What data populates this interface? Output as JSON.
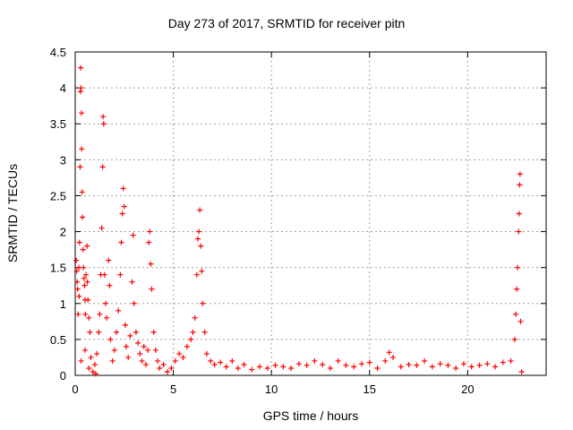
{
  "chart_data": {
    "type": "scatter",
    "title": "Day 273 of 2017, SRMTID for receiver pitn",
    "xlabel": "GPS time / hours",
    "ylabel": "SRMTID / TECUs",
    "xlim": [
      0,
      24
    ],
    "ylim": [
      0,
      4.5
    ],
    "xticks": [
      0,
      5,
      10,
      15,
      20
    ],
    "yticks": [
      0,
      0.5,
      1,
      1.5,
      2,
      2.5,
      3,
      3.5,
      4,
      4.5
    ],
    "grid": true,
    "marker": "+",
    "color": "#ff0000",
    "series": [
      {
        "name": "SRMTID",
        "points": [
          [
            0.05,
            1.6
          ],
          [
            0.08,
            1.45
          ],
          [
            0.1,
            1.3
          ],
          [
            0.12,
            1.2
          ],
          [
            0.15,
            0.85
          ],
          [
            0.18,
            1.5
          ],
          [
            0.2,
            1.1
          ],
          [
            0.22,
            1.85
          ],
          [
            0.25,
            2.9
          ],
          [
            0.27,
            3.95
          ],
          [
            0.28,
            4.28
          ],
          [
            0.3,
            4.0
          ],
          [
            0.32,
            3.65
          ],
          [
            0.33,
            3.15
          ],
          [
            0.35,
            2.55
          ],
          [
            0.37,
            2.2
          ],
          [
            0.4,
            1.75
          ],
          [
            0.42,
            1.5
          ],
          [
            0.45,
            1.35
          ],
          [
            0.48,
            1.25
          ],
          [
            0.5,
            1.05
          ],
          [
            0.52,
            0.85
          ],
          [
            0.55,
            1.4
          ],
          [
            0.6,
            1.8
          ],
          [
            0.62,
            1.3
          ],
          [
            0.65,
            1.05
          ],
          [
            0.7,
            0.8
          ],
          [
            0.75,
            0.6
          ],
          [
            0.3,
            0.2
          ],
          [
            0.5,
            0.35
          ],
          [
            0.7,
            0.1
          ],
          [
            0.8,
            0.25
          ],
          [
            0.9,
            0.05
          ],
          [
            1.0,
            0.15
          ],
          [
            1.05,
            0.02
          ],
          [
            1.1,
            0.3
          ],
          [
            1.2,
            0.6
          ],
          [
            1.25,
            0.85
          ],
          [
            1.3,
            1.4
          ],
          [
            1.35,
            2.05
          ],
          [
            1.4,
            2.9
          ],
          [
            1.42,
            3.6
          ],
          [
            1.45,
            3.5
          ],
          [
            1.5,
            1.4
          ],
          [
            1.55,
            1.0
          ],
          [
            1.6,
            0.8
          ],
          [
            1.7,
            1.6
          ],
          [
            1.75,
            1.25
          ],
          [
            1.8,
            0.5
          ],
          [
            1.9,
            0.2
          ],
          [
            2.0,
            0.35
          ],
          [
            2.1,
            0.6
          ],
          [
            2.2,
            0.9
          ],
          [
            2.3,
            1.4
          ],
          [
            2.35,
            1.85
          ],
          [
            2.4,
            2.25
          ],
          [
            2.45,
            2.6
          ],
          [
            2.5,
            2.35
          ],
          [
            2.55,
            0.7
          ],
          [
            2.6,
            0.4
          ],
          [
            2.7,
            0.25
          ],
          [
            2.8,
            0.55
          ],
          [
            2.9,
            1.3
          ],
          [
            2.95,
            1.95
          ],
          [
            3.0,
            1.0
          ],
          [
            3.1,
            0.6
          ],
          [
            3.2,
            0.45
          ],
          [
            3.3,
            0.3
          ],
          [
            3.4,
            0.2
          ],
          [
            3.5,
            0.4
          ],
          [
            3.6,
            0.15
          ],
          [
            3.7,
            0.35
          ],
          [
            3.75,
            1.85
          ],
          [
            3.8,
            2.0
          ],
          [
            3.85,
            1.55
          ],
          [
            3.9,
            1.2
          ],
          [
            4.0,
            0.6
          ],
          [
            4.1,
            0.35
          ],
          [
            4.2,
            0.2
          ],
          [
            4.3,
            0.1
          ],
          [
            4.5,
            0.15
          ],
          [
            4.7,
            0.05
          ],
          [
            4.9,
            0.1
          ],
          [
            5.1,
            0.2
          ],
          [
            5.3,
            0.3
          ],
          [
            5.5,
            0.25
          ],
          [
            5.7,
            0.4
          ],
          [
            5.9,
            0.5
          ],
          [
            6.0,
            0.6
          ],
          [
            6.1,
            0.8
          ],
          [
            6.2,
            1.4
          ],
          [
            6.25,
            1.9
          ],
          [
            6.3,
            2.0
          ],
          [
            6.35,
            2.3
          ],
          [
            6.4,
            1.8
          ],
          [
            6.45,
            1.45
          ],
          [
            6.5,
            1.0
          ],
          [
            6.6,
            0.6
          ],
          [
            6.7,
            0.3
          ],
          [
            6.9,
            0.2
          ],
          [
            7.1,
            0.15
          ],
          [
            7.4,
            0.18
          ],
          [
            7.7,
            0.12
          ],
          [
            8.0,
            0.2
          ],
          [
            8.3,
            0.1
          ],
          [
            8.6,
            0.15
          ],
          [
            9.0,
            0.08
          ],
          [
            9.4,
            0.12
          ],
          [
            9.8,
            0.1
          ],
          [
            10.2,
            0.14
          ],
          [
            10.6,
            0.12
          ],
          [
            11.0,
            0.1
          ],
          [
            11.4,
            0.16
          ],
          [
            11.8,
            0.14
          ],
          [
            12.2,
            0.2
          ],
          [
            12.6,
            0.15
          ],
          [
            13.0,
            0.1
          ],
          [
            13.4,
            0.2
          ],
          [
            13.8,
            0.14
          ],
          [
            14.2,
            0.12
          ],
          [
            14.6,
            0.16
          ],
          [
            15.0,
            0.18
          ],
          [
            15.4,
            0.1
          ],
          [
            15.8,
            0.2
          ],
          [
            16.0,
            0.32
          ],
          [
            16.2,
            0.25
          ],
          [
            16.6,
            0.12
          ],
          [
            17.0,
            0.15
          ],
          [
            17.4,
            0.14
          ],
          [
            17.8,
            0.2
          ],
          [
            18.2,
            0.12
          ],
          [
            18.6,
            0.16
          ],
          [
            19.0,
            0.14
          ],
          [
            19.4,
            0.1
          ],
          [
            19.8,
            0.16
          ],
          [
            20.2,
            0.12
          ],
          [
            20.6,
            0.14
          ],
          [
            21.0,
            0.16
          ],
          [
            21.4,
            0.12
          ],
          [
            21.8,
            0.18
          ],
          [
            22.2,
            0.2
          ],
          [
            22.4,
            0.5
          ],
          [
            22.45,
            0.85
          ],
          [
            22.5,
            1.2
          ],
          [
            22.55,
            1.5
          ],
          [
            22.6,
            2.0
          ],
          [
            22.62,
            2.25
          ],
          [
            22.65,
            2.65
          ],
          [
            22.67,
            2.8
          ],
          [
            22.7,
            0.75
          ],
          [
            22.75,
            0.05
          ]
        ]
      }
    ]
  }
}
